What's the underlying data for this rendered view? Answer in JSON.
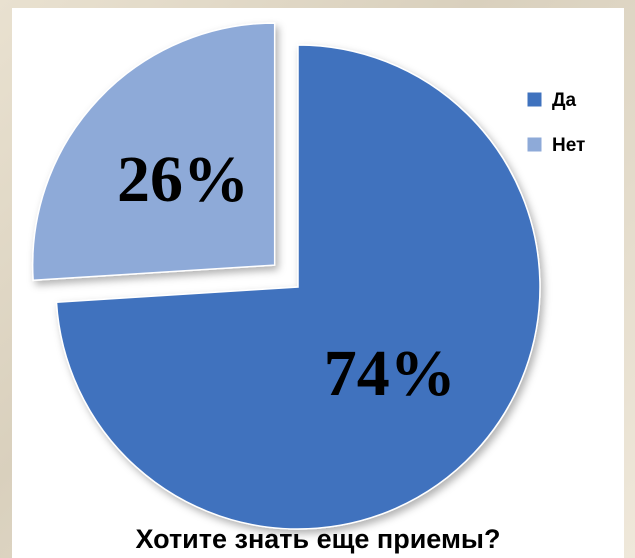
{
  "chart_data": {
    "type": "pie",
    "title": "Хотите знать еще приемы?",
    "categories": [
      "Да",
      "Нет"
    ],
    "values": [
      74,
      26
    ],
    "value_labels": [
      "74%",
      "26%"
    ],
    "colors": [
      "#3f72be",
      "#8eaad8"
    ],
    "legend": "top-right"
  }
}
